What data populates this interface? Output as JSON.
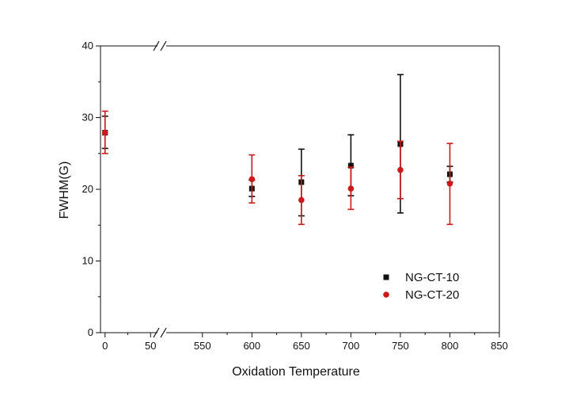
{
  "chart_data": {
    "type": "scatter",
    "xlabel": "Oxidation Temperature",
    "ylabel": "FWHM(G)",
    "ylim": [
      0,
      40
    ],
    "yticks": [
      0,
      10,
      20,
      30,
      40
    ],
    "x_segments": [
      {
        "range": [
          -5,
          55
        ],
        "ticks": [
          0,
          50
        ]
      },
      {
        "range": [
          515,
          850
        ],
        "ticks": [
          550,
          600,
          650,
          700,
          750,
          800,
          850
        ]
      }
    ],
    "axis_break": true,
    "legend_position": "lower-right",
    "series": [
      {
        "name": "NG-CT-10",
        "marker": "square",
        "color": "#111111",
        "points": [
          {
            "x": 0,
            "y": 27.9,
            "low": 25.7,
            "high": 30.2
          },
          {
            "x": 600,
            "y": 20.1,
            "low": 19.0,
            "high": 21.3
          },
          {
            "x": 650,
            "y": 21.0,
            "low": 16.3,
            "high": 25.6
          },
          {
            "x": 700,
            "y": 23.3,
            "low": 19.1,
            "high": 27.6
          },
          {
            "x": 750,
            "y": 26.3,
            "low": 16.7,
            "high": 36.0
          },
          {
            "x": 800,
            "y": 22.1,
            "low": 21.0,
            "high": 23.2
          }
        ]
      },
      {
        "name": "NG-CT-20",
        "marker": "circle",
        "color": "#cc1a1a",
        "points": [
          {
            "x": 0,
            "y": 27.9,
            "low": 25.0,
            "high": 30.9
          },
          {
            "x": 600,
            "y": 21.4,
            "low": 18.1,
            "high": 24.8
          },
          {
            "x": 650,
            "y": 18.5,
            "low": 15.1,
            "high": 21.9
          },
          {
            "x": 700,
            "y": 20.1,
            "low": 17.2,
            "high": 23.1
          },
          {
            "x": 750,
            "y": 22.7,
            "low": 18.7,
            "high": 26.7
          },
          {
            "x": 800,
            "y": 20.8,
            "low": 15.1,
            "high": 26.4
          }
        ]
      }
    ]
  }
}
